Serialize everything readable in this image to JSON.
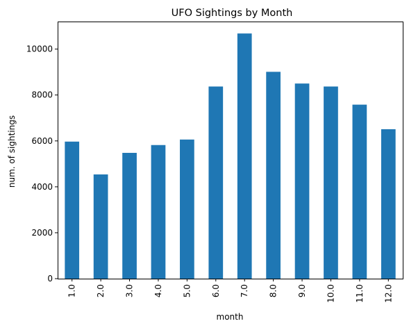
{
  "chart_data": {
    "type": "bar",
    "title": "UFO Sightings by Month",
    "xlabel": "month",
    "ylabel": "num. of sightings",
    "categories": [
      "1.0",
      "2.0",
      "3.0",
      "4.0",
      "5.0",
      "6.0",
      "7.0",
      "8.0",
      "9.0",
      "10.0",
      "11.0",
      "12.0"
    ],
    "values": [
      5970,
      4540,
      5480,
      5820,
      6060,
      8370,
      10680,
      9010,
      8500,
      8370,
      7580,
      6510
    ],
    "ylim": [
      0,
      11200
    ],
    "yticks": [
      0,
      2000,
      4000,
      6000,
      8000,
      10000
    ],
    "ytick_labels": [
      "0",
      "2000",
      "4000",
      "6000",
      "8000",
      "10000"
    ],
    "bar_color": "#1f77b4",
    "grid": false,
    "legend": false
  }
}
